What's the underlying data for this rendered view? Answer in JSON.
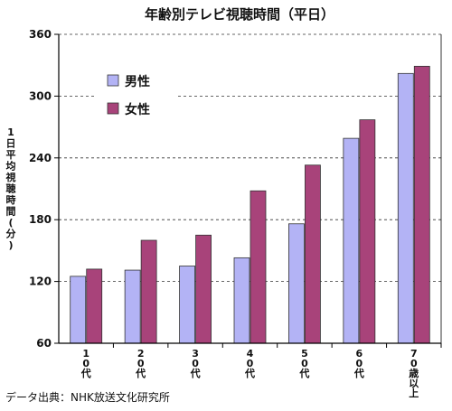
{
  "chart_data": {
    "type": "bar",
    "title": "年齢別テレビ視聴時間（平日）",
    "ylabel": "1日平均視聴時間(分)",
    "xlabel": "",
    "categories": [
      "10代",
      "20代",
      "30代",
      "40代",
      "50代",
      "60代",
      "70歳以上"
    ],
    "category_labels": [
      [
        "1",
        "0",
        "代"
      ],
      [
        "2",
        "0",
        "代"
      ],
      [
        "3",
        "0",
        "代"
      ],
      [
        "4",
        "0",
        "代"
      ],
      [
        "5",
        "0",
        "代"
      ],
      [
        "6",
        "0",
        "代"
      ],
      [
        "7",
        "0",
        "歳",
        "以",
        "上"
      ]
    ],
    "series": [
      {
        "name": "男性",
        "color": "#b3b3f5",
        "values": [
          125,
          131,
          135,
          143,
          176,
          259,
          322
        ]
      },
      {
        "name": "女性",
        "color": "#a8437a",
        "values": [
          132,
          160,
          165,
          208,
          233,
          277,
          329
        ]
      }
    ],
    "ylim": [
      60,
      360
    ],
    "yticks": [
      60,
      120,
      180,
      240,
      300,
      360
    ],
    "grid": "horizontal dashed",
    "legend_position": "top-left"
  },
  "source": "データ出典：NHK放送文化研究所"
}
